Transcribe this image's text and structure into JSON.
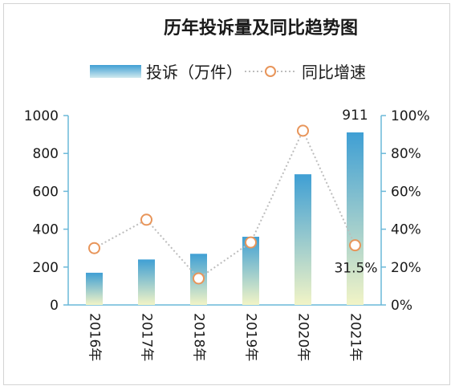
{
  "chart_data": {
    "type": "bar",
    "title": "历年投诉量及同比趋势图",
    "categories": [
      "2016年",
      "2017年",
      "2018年",
      "2019年",
      "2020年",
      "2021年"
    ],
    "series": [
      {
        "name": "投诉（万件）",
        "type": "bar",
        "axis": "left",
        "values": [
          170,
          240,
          270,
          360,
          690,
          911
        ]
      },
      {
        "name": "同比增速",
        "type": "line",
        "axis": "right",
        "values": [
          0.3,
          0.45,
          0.14,
          0.33,
          0.92,
          0.315
        ]
      }
    ],
    "y_left": {
      "min": 0,
      "max": 1000,
      "ticks": [
        "0",
        "200",
        "400",
        "600",
        "800",
        "1000"
      ]
    },
    "y_right": {
      "min": 0,
      "max": 1.0,
      "ticks": [
        "0%",
        "20%",
        "40%",
        "60%",
        "80%",
        "100%"
      ]
    },
    "data_labels": [
      {
        "series": 0,
        "index": 5,
        "text": "911"
      },
      {
        "series": 1,
        "index": 5,
        "text": "31.5%"
      }
    ],
    "grid": false,
    "legend_position": "top",
    "colors": {
      "bar_top": "#3f9fd4",
      "bar_bottom": "#f2f4c6",
      "line": "#bdbdbd",
      "marker_stroke": "#e8955a",
      "marker_fill": "#ffffff",
      "axis": "#6ab8d9"
    }
  }
}
